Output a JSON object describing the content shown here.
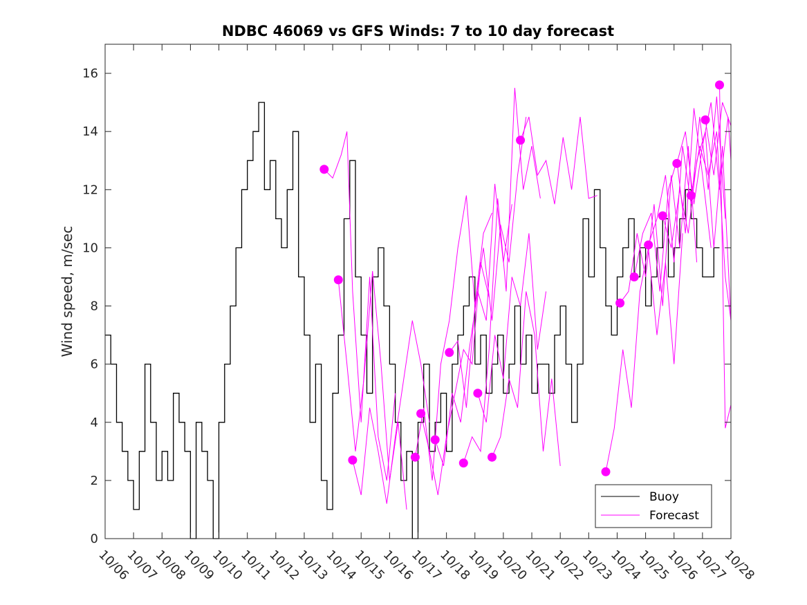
{
  "chart_data": {
    "type": "line",
    "title": "NDBC 46069 vs GFS Winds: 7 to 10 day forecast",
    "xlabel": "",
    "ylabel": "Wind speed, m/sec",
    "ylim": [
      0,
      17
    ],
    "yticks": [
      0,
      2,
      4,
      6,
      8,
      10,
      12,
      14,
      16
    ],
    "xlim": [
      0,
      22
    ],
    "xticks": [
      0,
      1,
      2,
      3,
      4,
      5,
      6,
      7,
      8,
      9,
      10,
      11,
      12,
      13,
      14,
      15,
      16,
      17,
      18,
      19,
      20,
      21,
      22
    ],
    "xtick_labels": [
      "10/06",
      "10/07",
      "10/08",
      "10/09",
      "10/10",
      "10/11",
      "10/12",
      "10/13",
      "10/14",
      "10/15",
      "10/16",
      "10/17",
      "10/18",
      "10/19",
      "10/20",
      "10/21",
      "10/22",
      "10/23",
      "10/24",
      "10/25",
      "10/26",
      "10/27",
      "10/28"
    ],
    "x_units": "days since 10/06 00:00",
    "legend": {
      "position": "bottom-right",
      "entries": [
        "Buoy",
        "Forecast"
      ]
    },
    "colors": {
      "buoy": "#000000",
      "forecast": "#ff00ff"
    },
    "series": [
      {
        "name": "Buoy",
        "color": "#000000",
        "x": [
          0,
          0.2,
          0.4,
          0.6,
          0.8,
          1.0,
          1.2,
          1.4,
          1.6,
          1.8,
          2.0,
          2.2,
          2.4,
          2.6,
          2.8,
          3.0,
          3.2,
          3.4,
          3.6,
          3.8,
          4.0,
          4.2,
          4.4,
          4.6,
          4.8,
          5.0,
          5.2,
          5.4,
          5.6,
          5.8,
          6.0,
          6.2,
          6.4,
          6.6,
          6.8,
          7.0,
          7.2,
          7.4,
          7.6,
          7.8,
          8.0,
          8.2,
          8.4,
          8.6,
          8.8,
          9.0,
          9.2,
          9.4,
          9.6,
          9.8,
          10.0,
          10.2,
          10.4,
          10.6,
          10.8,
          11.0,
          11.2,
          11.4,
          11.6,
          11.8,
          12.0,
          12.2,
          12.4,
          12.6,
          12.8,
          13.0,
          13.2,
          13.4,
          13.6,
          13.8,
          14.0,
          14.2,
          14.4,
          14.6,
          14.8,
          15.0,
          15.2,
          15.4,
          15.6,
          15.8,
          16.0,
          16.2,
          16.4,
          16.6,
          16.8,
          17.0,
          17.2,
          17.4,
          17.6,
          17.8,
          18.0,
          18.2,
          18.4,
          18.6,
          18.8,
          19.0,
          19.2,
          19.4,
          19.6,
          19.8,
          20.0,
          20.2,
          20.4,
          20.6,
          20.8,
          21.0,
          21.2,
          21.4
        ],
        "y": [
          7,
          6,
          4,
          3,
          2,
          1,
          3,
          6,
          4,
          2,
          3,
          2,
          5,
          4,
          3,
          0,
          4,
          3,
          2,
          0,
          4,
          6,
          8,
          10,
          12,
          13,
          14,
          15,
          12,
          13,
          11,
          10,
          12,
          14,
          9,
          7,
          4,
          6,
          2,
          1,
          5,
          7,
          11,
          13,
          9,
          7,
          5,
          9,
          10,
          8,
          6,
          4,
          2,
          3,
          0,
          4,
          6,
          3,
          4,
          5,
          3,
          6,
          7,
          8,
          9,
          6,
          7,
          5,
          6,
          7,
          5,
          6,
          8,
          6,
          7,
          5,
          6,
          6,
          5,
          7,
          8,
          6,
          4,
          6,
          11,
          9,
          12,
          10,
          8,
          7,
          9,
          10,
          11,
          9,
          10,
          8,
          9,
          10,
          11,
          9,
          10,
          11,
          12,
          11,
          10,
          9,
          9,
          10
        ]
      },
      {
        "name": "Forecast",
        "color": "#ff00ff",
        "runs": [
          {
            "x": [
              7.7,
              8.0,
              8.3,
              8.5,
              8.7,
              9.0,
              9.3,
              9.6,
              9.9,
              10.2
            ],
            "y": [
              12.7,
              12.4,
              13.2,
              14.0,
              8.5,
              4.0,
              9.0,
              3.5,
              2.0,
              5.0
            ]
          },
          {
            "x": [
              8.2,
              8.5,
              8.8,
              9.1,
              9.4,
              9.7,
              10.0,
              10.3,
              10.6
            ],
            "y": [
              8.9,
              6.0,
              3.0,
              5.5,
              9.2,
              6.0,
              2.0,
              4.0,
              1.0
            ]
          },
          {
            "x": [
              8.7,
              9.0,
              9.3,
              9.6,
              9.9,
              10.2,
              10.5,
              10.8,
              11.1,
              11.4
            ],
            "y": [
              2.7,
              1.5,
              4.5,
              3.0,
              1.2,
              3.5,
              5.5,
              7.5,
              6.0,
              4.0
            ]
          },
          {
            "x": [
              10.9,
              11.2,
              11.5,
              11.8,
              12.1,
              12.4,
              12.7,
              13.0,
              13.3,
              13.6
            ],
            "y": [
              2.8,
              4.5,
              2.0,
              6.0,
              7.5,
              10.0,
              11.8,
              8.0,
              10.5,
              11.2
            ]
          },
          {
            "x": [
              11.1,
              11.4,
              11.7,
              12.0,
              12.3,
              12.6,
              12.9,
              13.2,
              13.5
            ],
            "y": [
              4.3,
              3.0,
              1.5,
              3.5,
              5.0,
              6.5,
              6.0,
              9.5,
              8.3
            ]
          },
          {
            "x": [
              11.6,
              11.9,
              12.2,
              12.5,
              12.8,
              13.1,
              13.4,
              13.7,
              14.0,
              14.3
            ],
            "y": [
              3.4,
              2.5,
              5.0,
              4.0,
              6.5,
              8.5,
              7.5,
              12.2,
              9.5,
              11.5
            ]
          },
          {
            "x": [
              12.1,
              12.4,
              12.7,
              13.0,
              13.3,
              13.6,
              13.9,
              14.2,
              14.5,
              14.8
            ],
            "y": [
              6.4,
              6.8,
              4.5,
              8.0,
              10.0,
              7.5,
              10.8,
              9.5,
              12.5,
              14.5
            ]
          },
          {
            "x": [
              12.6,
              12.9,
              13.2,
              13.5,
              13.8,
              14.1,
              14.4,
              14.7,
              15.0,
              15.3
            ],
            "y": [
              2.6,
              3.5,
              3.0,
              6.5,
              11.7,
              8.5,
              15.5,
              12.0,
              13.5,
              11.7
            ]
          },
          {
            "x": [
              13.1,
              13.4,
              13.7,
              14.0,
              14.3,
              14.6,
              14.9,
              15.2,
              15.5
            ],
            "y": [
              5.0,
              4.0,
              7.0,
              5.5,
              9.0,
              8.0,
              10.5,
              6.5,
              8.5
            ]
          },
          {
            "x": [
              13.6,
              13.9,
              14.2,
              14.5,
              14.8,
              15.1,
              15.4,
              15.7,
              16.0
            ],
            "y": [
              2.8,
              3.5,
              5.5,
              4.5,
              8.5,
              7.0,
              3.0,
              5.5,
              2.5
            ]
          },
          {
            "x": [
              14.6,
              14.9,
              15.2,
              15.5,
              15.8,
              16.1,
              16.4,
              16.7,
              17.0,
              17.3
            ],
            "y": [
              13.7,
              14.5,
              12.5,
              13.0,
              11.5,
              13.8,
              12.0,
              14.5,
              11.7,
              11.8
            ]
          },
          {
            "x": [
              17.6,
              17.9,
              18.2,
              18.5,
              18.8,
              19.1,
              19.4,
              19.7,
              20.0,
              20.3
            ],
            "y": [
              2.3,
              3.8,
              6.5,
              4.5,
              8.5,
              10.0,
              7.0,
              9.5,
              6.0,
              10.5
            ]
          },
          {
            "x": [
              18.1,
              18.4,
              18.7,
              19.0,
              19.3,
              19.6,
              19.9,
              20.2,
              20.5,
              20.8
            ],
            "y": [
              8.1,
              8.5,
              10.5,
              9.0,
              11.5,
              8.0,
              12.5,
              10.0,
              13.5,
              9.5
            ]
          },
          {
            "x": [
              18.6,
              18.9,
              19.2,
              19.5,
              19.8,
              20.1,
              20.4,
              20.7,
              21.0,
              21.3
            ],
            "y": [
              9.0,
              10.5,
              11.2,
              8.5,
              12.0,
              13.0,
              10.5,
              14.8,
              12.5,
              10.0
            ]
          },
          {
            "x": [
              19.1,
              19.4,
              19.7,
              20.0,
              20.3,
              20.6,
              20.9,
              21.2,
              21.5,
              21.8
            ],
            "y": [
              10.1,
              11.0,
              12.5,
              9.5,
              13.5,
              11.5,
              14.5,
              12.0,
              15.2,
              11.0
            ]
          },
          {
            "x": [
              19.6,
              19.9,
              20.2,
              20.5,
              20.8,
              21.1,
              21.4,
              21.7,
              22.0
            ],
            "y": [
              11.1,
              10.0,
              12.0,
              10.5,
              13.0,
              14.0,
              10.0,
              13.5,
              7.5
            ]
          },
          {
            "x": [
              20.1,
              20.4,
              20.7,
              21.0,
              21.3,
              21.6,
              21.9,
              22.0
            ],
            "y": [
              12.9,
              14.0,
              11.5,
              13.5,
              15.0,
              12.0,
              14.5,
              13.0
            ]
          },
          {
            "x": [
              20.6,
              20.9,
              21.2,
              21.5,
              21.8,
              22.0
            ],
            "y": [
              11.8,
              13.5,
              12.5,
              14.0,
              9.0,
              7.5
            ]
          },
          {
            "x": [
              21.1,
              21.4,
              21.7,
              22.0
            ],
            "y": [
              14.4,
              12.5,
              15.0,
              14.2
            ]
          },
          {
            "x": [
              21.6,
              21.8,
              22.0
            ],
            "y": [
              15.6,
              3.8,
              4.6
            ]
          }
        ]
      }
    ]
  }
}
